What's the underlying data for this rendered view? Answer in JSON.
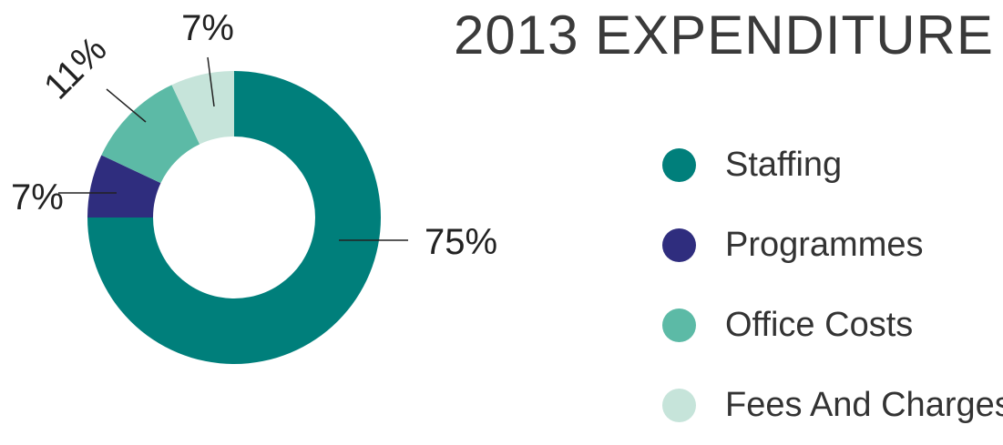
{
  "chart_data": {
    "type": "pie",
    "title": "2013 EXPENDITURE",
    "categories": [
      "Staffing",
      "Programmes",
      "Office Costs",
      "Fees And Charges"
    ],
    "values": [
      75,
      7,
      11,
      7
    ],
    "labels": [
      "75%",
      "7%",
      "11%",
      "7%"
    ],
    "colors": [
      "#007f7b",
      "#2f2d7e",
      "#5cbaa6",
      "#c6e4da"
    ],
    "legend_position": "right"
  }
}
